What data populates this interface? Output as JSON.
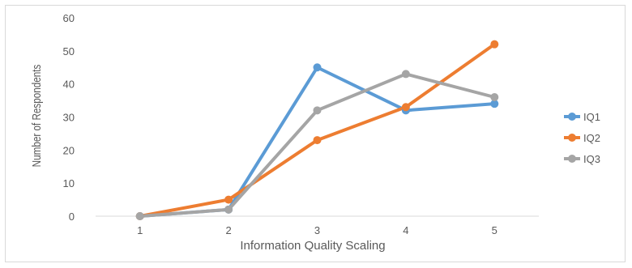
{
  "chart_data": {
    "type": "line",
    "xlabel": "Information Quality Scaling",
    "ylabel": "Number of Respondents",
    "categories": [
      "1",
      "2",
      "3",
      "4",
      "5"
    ],
    "y_ticks": [
      "0",
      "10",
      "20",
      "30",
      "40",
      "50",
      "60"
    ],
    "ylim": [
      0,
      60
    ],
    "grid": false,
    "legend_position": "right",
    "series": [
      {
        "name": "IQ1",
        "color": "#5B9BD5",
        "values": [
          0,
          2,
          45,
          32,
          34
        ]
      },
      {
        "name": "IQ2",
        "color": "#ED7D31",
        "values": [
          0,
          5,
          23,
          33,
          52
        ]
      },
      {
        "name": "IQ3",
        "color": "#A5A5A5",
        "values": [
          0,
          2,
          32,
          43,
          36
        ]
      }
    ]
  }
}
